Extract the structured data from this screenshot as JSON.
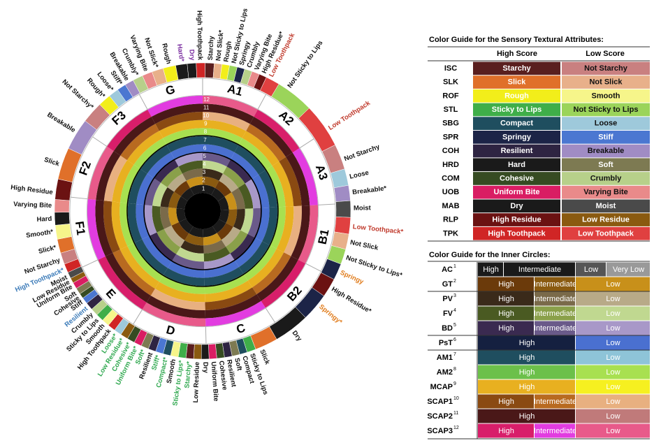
{
  "wheel": {
    "rings": [
      "1",
      "2",
      "3",
      "4",
      "5",
      "6",
      "7",
      "8",
      "9",
      "10",
      "11",
      "12"
    ],
    "sectors": [
      "G",
      "A1",
      "A2",
      "A3",
      "B1",
      "B2",
      "C",
      "D",
      "E",
      "F1",
      "F2",
      "F3"
    ],
    "labels": [
      {
        "text": "Breakable"
      },
      {
        "text": "Not Starchy*"
      },
      {
        "text": "Rough*"
      },
      {
        "text": "Loose*"
      },
      {
        "text": "Stiff*"
      },
      {
        "text": "Breakable"
      },
      {
        "text": "Crumbly*"
      },
      {
        "text": "Varying Bite"
      },
      {
        "text": "Not Slick*"
      },
      {
        "text": "Rough"
      },
      {
        "text": "Hard*",
        "color": "#7b2fa0"
      },
      {
        "text": "Dry",
        "color": "#7b2fa0"
      },
      {
        "text": "High Toothpack"
      },
      {
        "text": "Starchy"
      },
      {
        "text": "Not Slick*"
      },
      {
        "text": "Rough"
      },
      {
        "text": "Not Sticky to Lips"
      },
      {
        "text": "Springy"
      },
      {
        "text": "Crumbly"
      },
      {
        "text": "Varying Bite"
      },
      {
        "text": "High Residue*"
      },
      {
        "text": "Low Toothpack",
        "color": "#c0392b"
      },
      {
        "text": "Not Sticky to Lips"
      },
      {
        "text": "Low Toothpack",
        "color": "#c0392b"
      },
      {
        "text": "Not Starchy"
      },
      {
        "text": "Loose"
      },
      {
        "text": "Breakable*"
      },
      {
        "text": "Moist"
      },
      {
        "text": "Low Toothpack*",
        "color": "#c0392b"
      },
      {
        "text": "Not Slick"
      },
      {
        "text": "Not Sticky to Lips*"
      },
      {
        "text": "Springy",
        "color": "#e07b1a"
      },
      {
        "text": "High Residue*"
      },
      {
        "text": "Springy*",
        "color": "#e07b1a"
      },
      {
        "text": "Dry"
      },
      {
        "text": "Slick"
      },
      {
        "text": "Sticky to Lips"
      },
      {
        "text": "Compact"
      },
      {
        "text": "Soft"
      },
      {
        "text": "Resilient"
      },
      {
        "text": "Cohesive"
      },
      {
        "text": "Uniform Bite"
      },
      {
        "text": "Dry"
      },
      {
        "text": "Low Residue"
      },
      {
        "text": "Starchy*",
        "color": "#2fa84f"
      },
      {
        "text": "Sticky to Lips*",
        "color": "#2fa84f"
      },
      {
        "text": "Smooth"
      },
      {
        "text": "Compact*",
        "color": "#2fa84f"
      },
      {
        "text": "Stiff*",
        "color": "#2fa84f"
      },
      {
        "text": "Resilient"
      },
      {
        "text": "Soft*",
        "color": "#2fa84f"
      },
      {
        "text": "Uniform Bite*",
        "color": "#2fa84f"
      },
      {
        "text": "Cohesive*",
        "color": "#2fa84f"
      },
      {
        "text": "Low Residue*",
        "color": "#2fa84f"
      },
      {
        "text": "Loose*",
        "color": "#2fa84f"
      },
      {
        "text": "High Toothpack"
      },
      {
        "text": "Smooth"
      },
      {
        "text": "Sticky to Lips"
      },
      {
        "text": "Crumbly"
      },
      {
        "text": "Resilient",
        "color": "#3a7ab8"
      },
      {
        "text": "Stiff"
      },
      {
        "text": "Cohesive"
      },
      {
        "text": "Soft"
      },
      {
        "text": "Uniform Bite"
      },
      {
        "text": "Low Residue"
      },
      {
        "text": "Moist"
      },
      {
        "text": "High Toothpack*",
        "color": "#3a7ab8"
      },
      {
        "text": "Not Starchy"
      },
      {
        "text": "Slick*"
      },
      {
        "text": "Smooth*"
      },
      {
        "text": "Hard"
      },
      {
        "text": "Varying Bite"
      },
      {
        "text": "High Residue"
      },
      {
        "text": "Slick"
      }
    ]
  },
  "color_guide": {
    "title": "Color Guide for the Sensory Textural Attributes:",
    "headers": [
      "High Score",
      "Low Score"
    ],
    "rows": [
      {
        "code": "ISC",
        "high": "Starchy",
        "high_color": "#5a1f1f",
        "low": "Not Starchy",
        "low_color": "#c98080"
      },
      {
        "code": "SLK",
        "high": "Slick",
        "high_color": "#e0702a",
        "low": "Not Slick",
        "low_color": "#e8b08a"
      },
      {
        "code": "ROF",
        "high": "Rough",
        "high_color": "#f2ee1a",
        "low": "Smooth",
        "low_color": "#f6f58a"
      },
      {
        "code": "STL",
        "high": "Sticky to Lips",
        "high_color": "#3fae49",
        "low": "Not Sticky to Lips",
        "low_color": "#9bd45a"
      },
      {
        "code": "SBG",
        "high": "Compact",
        "high_color": "#1f4e5f",
        "low": "Loose",
        "low_color": "#9ec9db"
      },
      {
        "code": "SPR",
        "high": "Springy",
        "high_color": "#1c2447",
        "low": "Stiff",
        "low_color": "#4b77d1"
      },
      {
        "code": "COH",
        "high": "Resilient",
        "high_color": "#2e2442",
        "low": "Breakable",
        "low_color": "#a08cc4"
      },
      {
        "code": "HRD",
        "high": "Hard",
        "high_color": "#1a1a1a",
        "low": "Soft",
        "low_color": "#7d7a52"
      },
      {
        "code": "COM",
        "high": "Cohesive",
        "high_color": "#364b22",
        "low": "Crumbly",
        "low_color": "#b7d08a"
      },
      {
        "code": "UOB",
        "high": "Uniform Bite",
        "high_color": "#d91d63",
        "low": "Varying Bite",
        "low_color": "#e98a8a"
      },
      {
        "code": "MAB",
        "high": "Dry",
        "high_color": "#1a1a1a",
        "low": "Moist",
        "low_color": "#4a4a4a"
      },
      {
        "code": "RLP",
        "high": "High Residue",
        "high_color": "#6b1212",
        "low": "Low Residue",
        "low_color": "#8a5a10"
      },
      {
        "code": "TPK",
        "high": "High Toothpack",
        "high_color": "#d02525",
        "low": "Low Toothpack",
        "low_color": "#e04040"
      }
    ]
  },
  "inner_guide": {
    "title": "Color Guide for the Inner Circles:",
    "rows": [
      {
        "code": "AC",
        "note": "1",
        "cells": [
          {
            "text": "High",
            "color": "#1a1a1a"
          },
          {
            "text": "Intermediate",
            "color": "#1a1a1a"
          },
          {
            "text": "Low",
            "color": "#555555"
          },
          {
            "text": "Very Low",
            "color": "#999999"
          }
        ]
      },
      {
        "code": "GT",
        "note": "2",
        "cells": [
          {
            "text": "High",
            "color": "#6b3a0a"
          },
          {
            "text": "Intermediate",
            "color": "#8a5a10"
          },
          {
            "text": "Low",
            "color": "#c8901a"
          }
        ]
      },
      {
        "code": "PV",
        "note": "3",
        "cells": [
          {
            "text": "High",
            "color": "#3a2a1a"
          },
          {
            "text": "Intermediate",
            "color": "#7a6a4a"
          },
          {
            "text": "Low",
            "color": "#b8aa88"
          }
        ]
      },
      {
        "code": "FV",
        "note": "4",
        "cells": [
          {
            "text": "High",
            "color": "#4a5a22"
          },
          {
            "text": "Intermediate",
            "color": "#8aa04a"
          },
          {
            "text": "Low",
            "color": "#c0d890"
          }
        ]
      },
      {
        "code": "BD",
        "note": "5",
        "cells": [
          {
            "text": "High",
            "color": "#3a2a50"
          },
          {
            "text": "Intermediate",
            "color": "#6a5a8a"
          },
          {
            "text": "Low",
            "color": "#a898c8"
          }
        ]
      },
      {
        "code": "PsT",
        "note": "6",
        "cells": [
          {
            "text": "High",
            "color": "#152040"
          },
          {
            "text": "Low",
            "color": "#4a70d0"
          }
        ]
      },
      {
        "code": "AM1",
        "note": "7",
        "cells": [
          {
            "text": "High",
            "color": "#1f4e5f"
          },
          {
            "text": "Low",
            "color": "#8ec4d8"
          }
        ]
      },
      {
        "code": "AM2",
        "note": "8",
        "cells": [
          {
            "text": "High",
            "color": "#6cc04a"
          },
          {
            "text": "Low",
            "color": "#a8e050"
          }
        ]
      },
      {
        "code": "MCAP",
        "note": "9",
        "cells": [
          {
            "text": "High",
            "color": "#e8b020"
          },
          {
            "text": "Low",
            "color": "#f6f020"
          }
        ]
      },
      {
        "code": "SCAP1",
        "note": "10",
        "cells": [
          {
            "text": "High",
            "color": "#8a4a12"
          },
          {
            "text": "Intermediate",
            "color": "#b86a20"
          },
          {
            "text": "Low",
            "color": "#e8b080"
          }
        ]
      },
      {
        "code": "SCAP2",
        "note": "11",
        "cells": [
          {
            "text": "High",
            "color": "#4a1818"
          },
          {
            "text": "Low",
            "color": "#c07a7a"
          }
        ]
      },
      {
        "code": "SCAP3",
        "note": "12",
        "cells": [
          {
            "text": "High",
            "color": "#d81e6a"
          },
          {
            "text": "Intermediate",
            "color": "#e23ce0"
          },
          {
            "text": "Low",
            "color": "#e85a8a"
          }
        ]
      }
    ]
  }
}
